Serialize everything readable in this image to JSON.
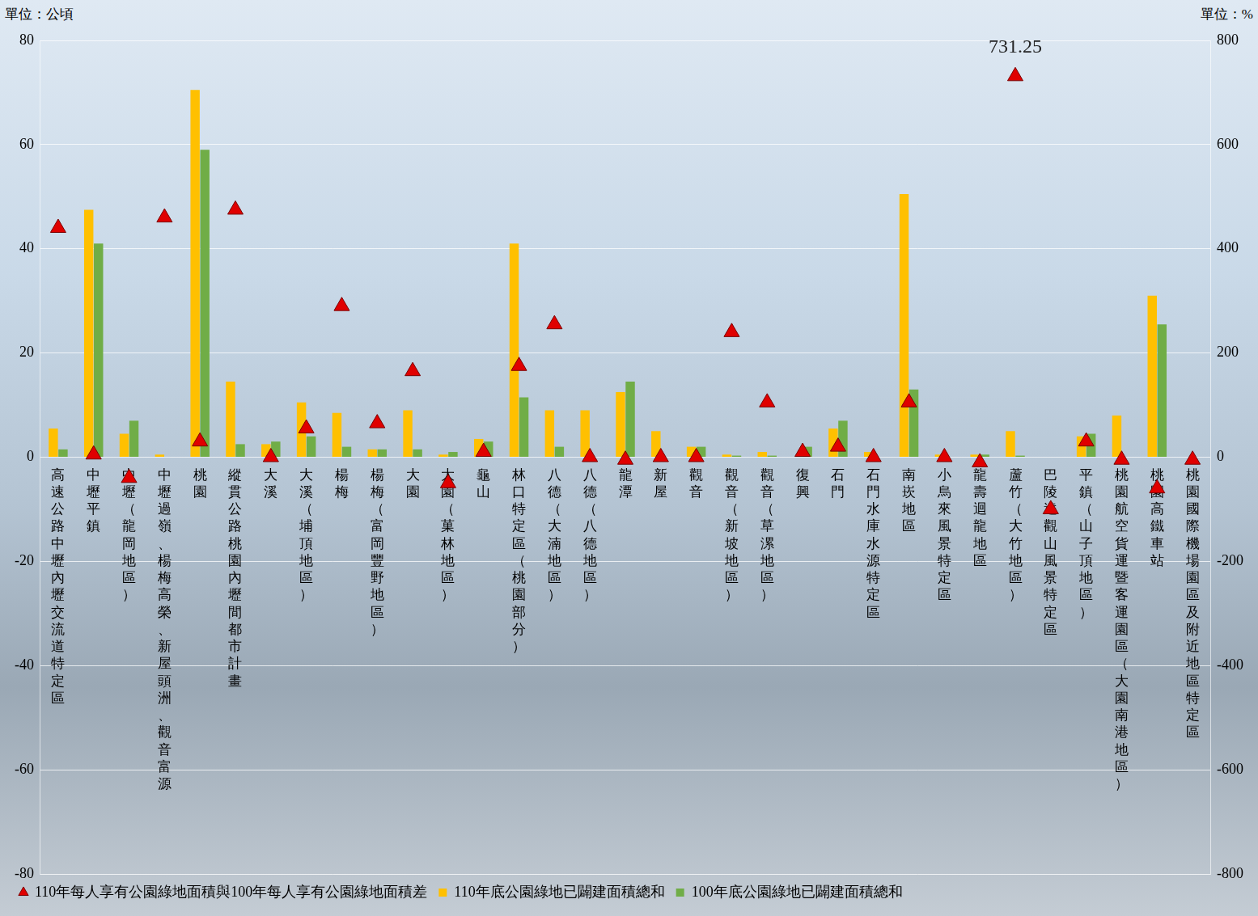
{
  "chart_data": {
    "type": "bar",
    "ylabel": "單位：公頃",
    "y2label": "單位：%",
    "categories": [
      "高速公路中壢內壢交流道特定區",
      "中壢平鎮",
      "中壢（龍岡地區）",
      "中壢過嶺、楊梅高榮、新屋頭洲、觀音富源",
      "桃園",
      "縱貫公路桃園內壢間都市計畫",
      "大溪",
      "大溪（埔頂地區）",
      "楊梅",
      "楊梅（富岡豐野地區）",
      "大園",
      "大園（菓林地區）",
      "龜山",
      "林口特定區（桃園部分）",
      "八德（大湳地區）",
      "八德（八德地區）",
      "龍潭",
      "新屋",
      "觀音",
      "觀音（新坡地區）",
      "觀音（草漯地區）",
      "復興",
      "石門",
      "石門水庫水源特定區",
      "南崁地區",
      "小烏來風景特定區",
      "龍壽迴龍地區",
      "蘆竹（大竹地區）",
      "巴陵達觀山風景特定區",
      "平鎮（山子頂地區）",
      "桃園航空貨運暨客運園區（大園南港地區）",
      "桃園高鐵車站",
      "桃園國際機場園區及附近地區特定區"
    ],
    "series": [
      {
        "name": "110年底公園綠地已闢建面積總和",
        "color": "#ffc000",
        "type": "bar",
        "values": [
          5.5,
          47.5,
          4.5,
          0.5,
          70.5,
          14.5,
          2.5,
          10.5,
          8.5,
          1.5,
          9,
          0.5,
          3.5,
          41,
          9,
          9,
          12.5,
          5,
          2,
          0.5,
          1,
          0,
          5.5,
          1,
          50.5,
          0.5,
          0.5,
          5,
          0,
          4,
          8,
          31,
          0
        ]
      },
      {
        "name": "100年底公園綠地已闢建面積總和",
        "color": "#70ad47",
        "type": "bar",
        "values": [
          1.5,
          41,
          7,
          0,
          59,
          2.5,
          3,
          4,
          2,
          1.5,
          1.5,
          1,
          3,
          11.5,
          2,
          0,
          14.5,
          0,
          2,
          0.3,
          0.3,
          2,
          7,
          0,
          13,
          0,
          0.5,
          0.3,
          0,
          4.5,
          0,
          25.5,
          0
        ]
      },
      {
        "name": "110年每人享有公園綠地面積與100年每人享有公園綠地面積差",
        "color": "#e00000",
        "type": "scatter",
        "marker": "triangle",
        "axis": "y2",
        "values": [
          440,
          5,
          -40,
          460,
          30,
          475,
          0,
          55,
          290,
          65,
          165,
          -50,
          10,
          175,
          255,
          0,
          -5,
          0,
          0,
          240,
          105,
          10,
          20,
          0,
          105,
          0,
          -10,
          731.25,
          -100,
          30,
          -5,
          -60,
          -5
        ]
      }
    ],
    "annotations": [
      {
        "text": "731.25",
        "x": "蘆竹（大竹地區）",
        "y": 731.25,
        "axis": "y2"
      }
    ],
    "ylim": [
      -80,
      80
    ],
    "yticks": [
      -80,
      -60,
      -40,
      -20,
      0,
      20,
      40,
      60,
      80
    ],
    "y2lim": [
      -800,
      800
    ],
    "y2ticks": [
      -800,
      -600,
      -400,
      -200,
      0,
      200,
      400,
      600,
      800
    ],
    "grid": true,
    "legend": "bottom"
  }
}
